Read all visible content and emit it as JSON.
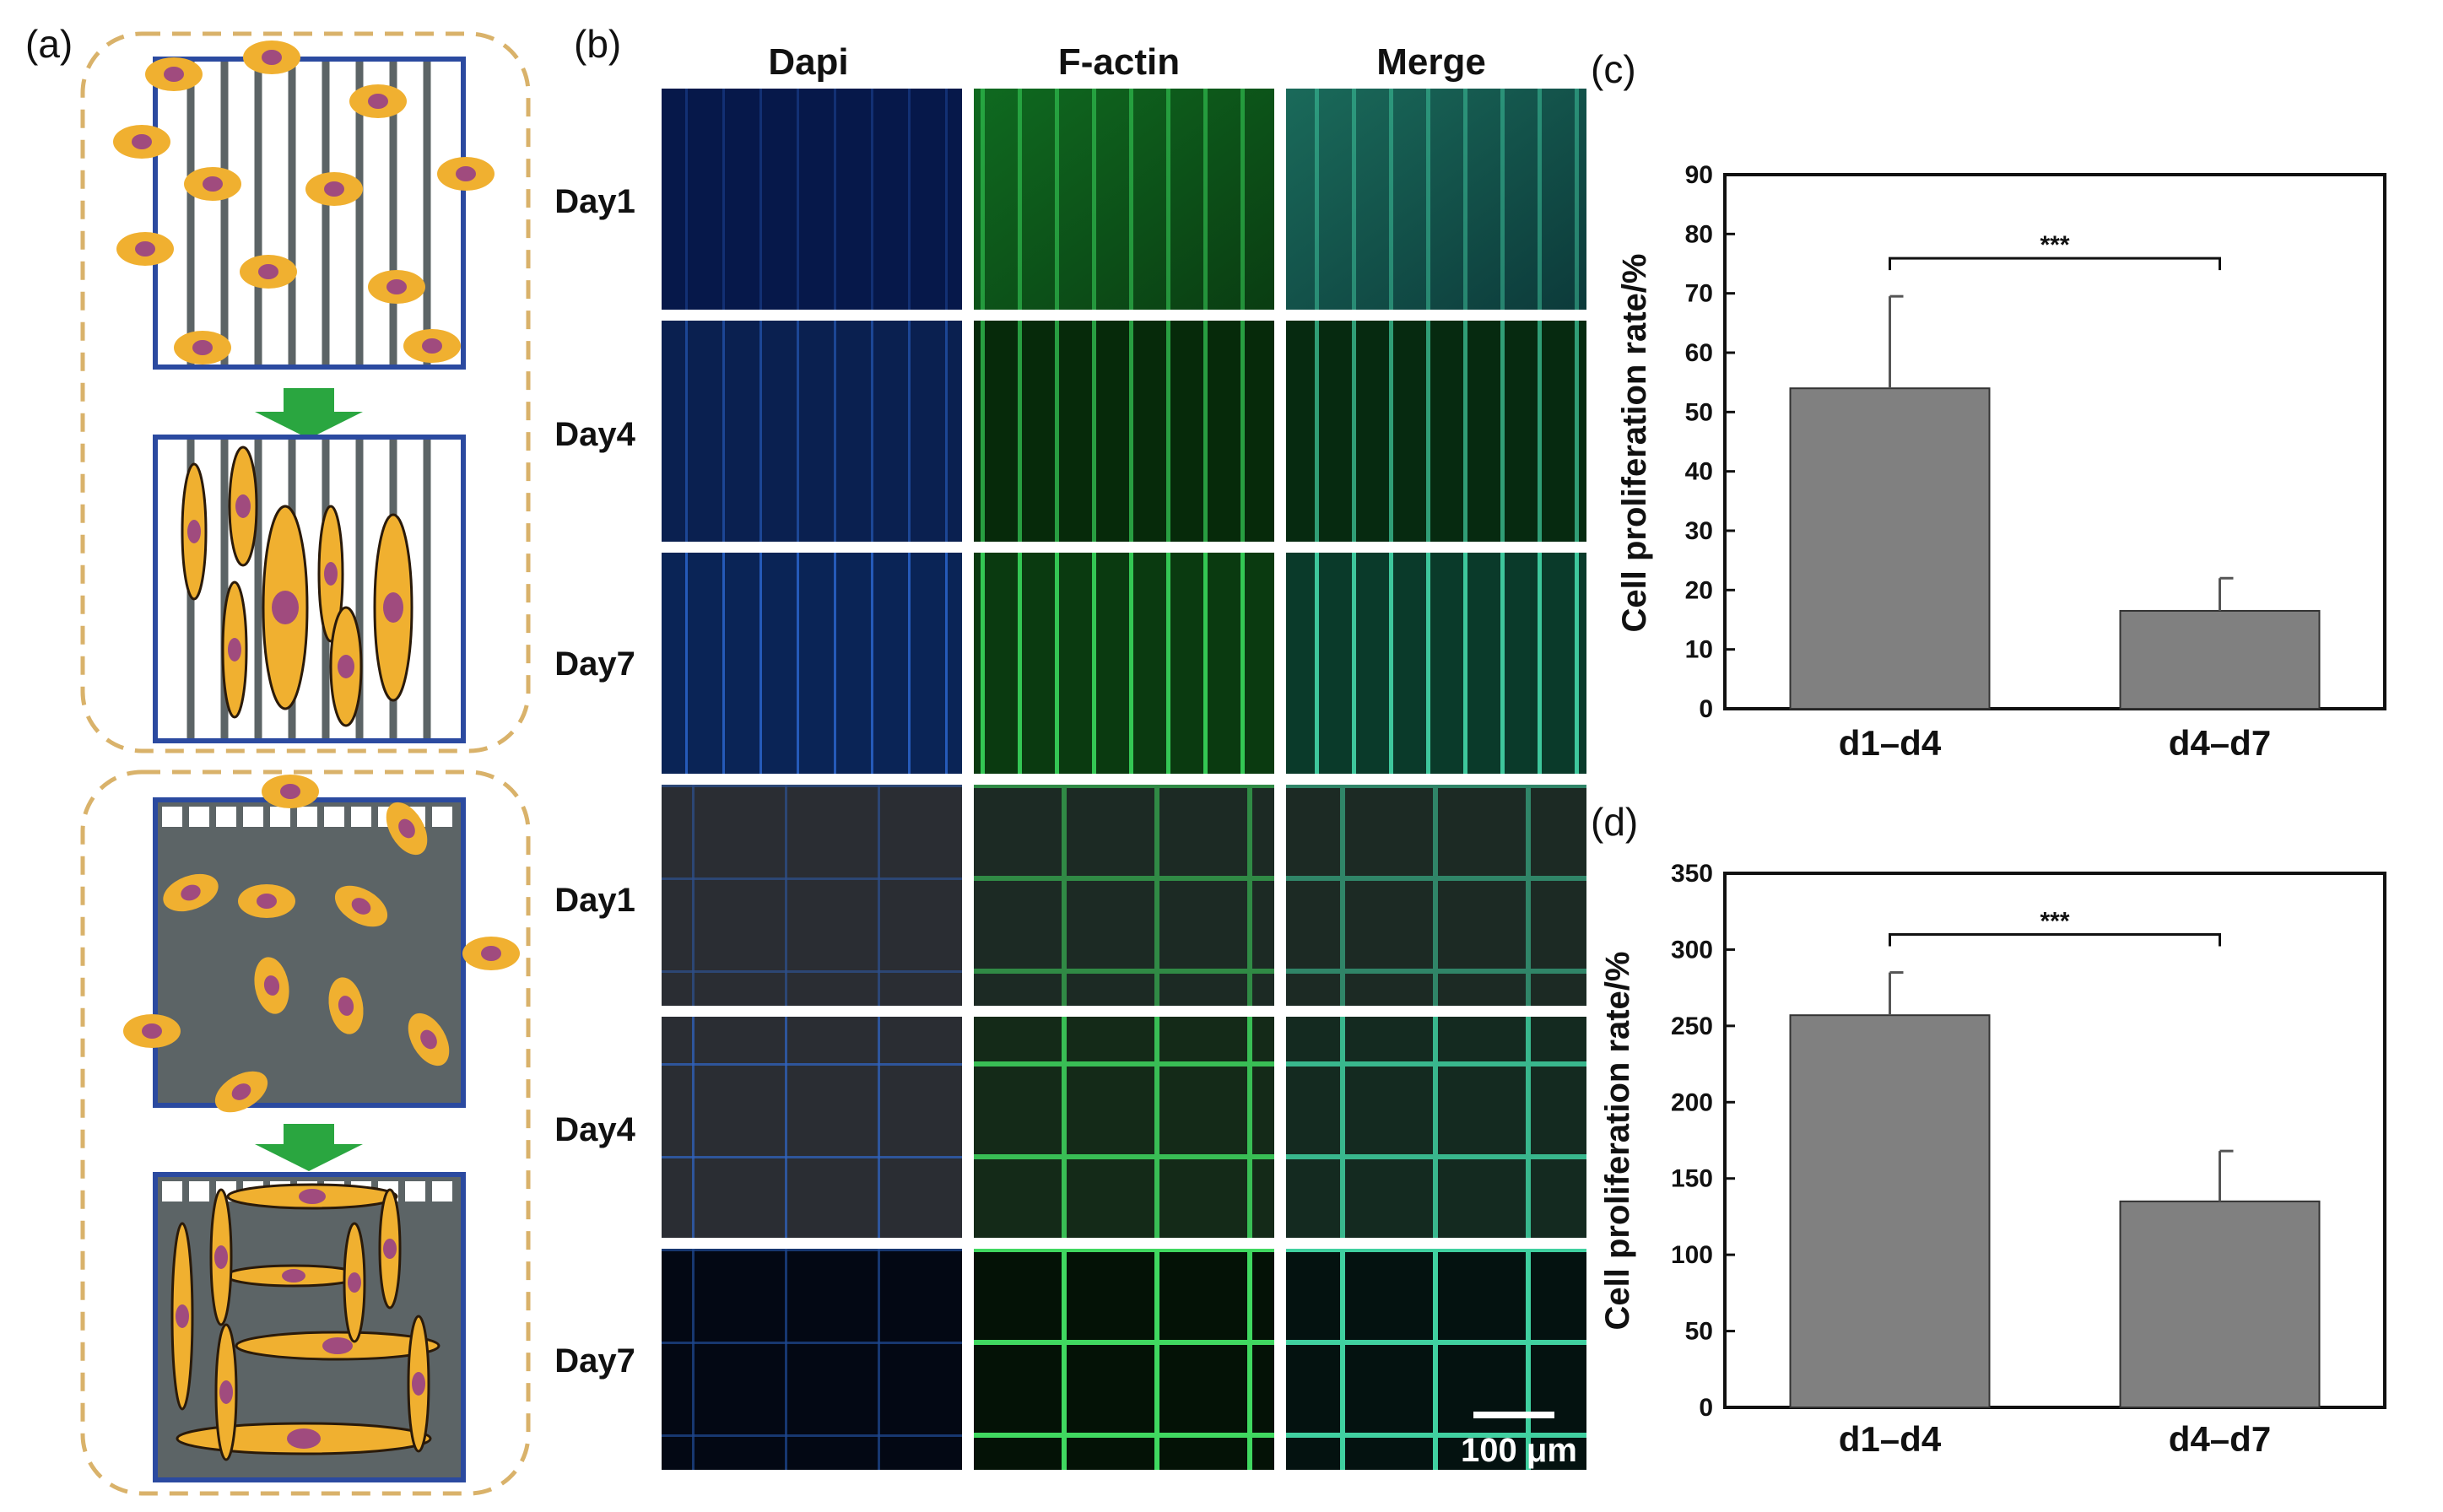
{
  "panels": {
    "a": "(a)",
    "b": "(b)",
    "c": "(c)",
    "d": "(d)"
  },
  "microscopy": {
    "columns": [
      "Dapi",
      "F-actin",
      "Merge"
    ],
    "rows": [
      "Day1",
      "Day4",
      "Day7",
      "Day1",
      "Day4",
      "Day7"
    ],
    "scale_bar": "100 μm"
  },
  "colors": {
    "bar": "#808080",
    "scaffold_border": "#2b4aa0",
    "cell_body": "#f0b030",
    "nucleus": "#a04b7e",
    "arrow": "#2aa640",
    "dashed_box": "#d9b26a",
    "fiber": "#5c6466"
  },
  "chart_data": [
    {
      "type": "bar",
      "panel": "(c)",
      "categories": [
        "d1–d4",
        "d4–d7"
      ],
      "values": [
        54,
        16.5
      ],
      "errors": [
        15.5,
        5.5
      ],
      "ylabel": "Cell proliferation rate/%",
      "ylim": [
        0,
        90
      ],
      "yticks": [
        "0",
        "10",
        "20",
        "30",
        "40",
        "50",
        "60",
        "70",
        "80",
        "90"
      ],
      "significance": "***"
    },
    {
      "type": "bar",
      "panel": "(d)",
      "categories": [
        "d1–d4",
        "d4–d7"
      ],
      "values": [
        257,
        135
      ],
      "errors": [
        28,
        33
      ],
      "ylabel": "Cell proliferation rate/%",
      "ylim": [
        0,
        350
      ],
      "yticks": [
        "0",
        "50",
        "100",
        "150",
        "200",
        "250",
        "300",
        "350"
      ],
      "significance": "***"
    }
  ]
}
